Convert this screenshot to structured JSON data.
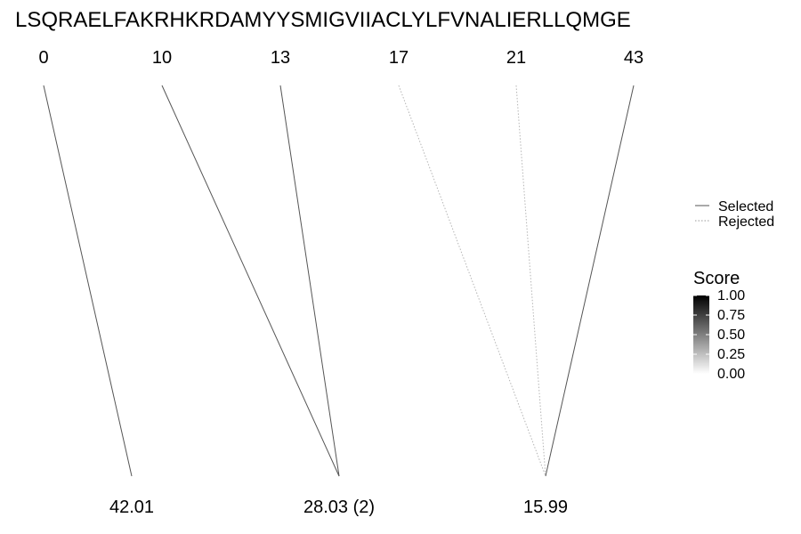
{
  "sequence": "LSQRAELFAKRHKRDAMYYSMIGVIIACLYLFVNALIERLLQMGE",
  "positions": [
    "0",
    "10",
    "13",
    "17",
    "21",
    "43"
  ],
  "results": [
    "42.01",
    "28.03 (2)",
    "15.99"
  ],
  "links": [
    {
      "from": 0,
      "to": 0,
      "status": "selected",
      "score": 0.55
    },
    {
      "from": 1,
      "to": 1,
      "status": "selected",
      "score": 0.55
    },
    {
      "from": 2,
      "to": 1,
      "status": "selected",
      "score": 0.55
    },
    {
      "from": 3,
      "to": 2,
      "status": "rejected",
      "score": 0.25
    },
    {
      "from": 4,
      "to": 2,
      "status": "rejected",
      "score": 0.2
    },
    {
      "from": 5,
      "to": 2,
      "status": "selected",
      "score": 0.55
    }
  ],
  "legend": {
    "linetype": [
      {
        "label": "Selected",
        "style": "solid"
      },
      {
        "label": "Rejected",
        "style": "dotted"
      }
    ],
    "score": {
      "title": "Score",
      "ticks": [
        "1.00",
        "0.75",
        "0.50",
        "0.25",
        "0.00"
      ],
      "low_color": "#ffffff",
      "high_color": "#000000"
    }
  }
}
